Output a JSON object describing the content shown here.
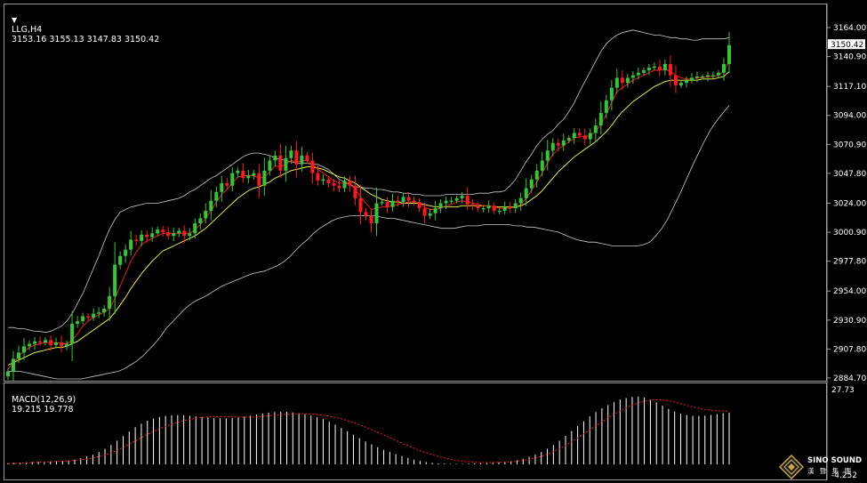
{
  "header": {
    "symbol_label": "LLG,H4",
    "ohlc": "3153.16 3155.13 3147.83 3150.42"
  },
  "macd": {
    "label": "MACD(12,26,9)",
    "values": "19.215 19.778",
    "axis_top": "27.73",
    "axis_bottom": "-4.252"
  },
  "current_price": "3150.42",
  "price_axis_labels": [
    "3164.00",
    "3140.90",
    "3117.10",
    "3094.00",
    "3070.90",
    "3047.80",
    "3024.00",
    "3000.90",
    "2977.80",
    "2954.00",
    "2930.90",
    "2907.80",
    "2884.70"
  ],
  "logo": {
    "name": "SINO SOUND",
    "sub": "漢 聲 集 團",
    "icon": "diamond-logo-icon"
  },
  "colors": {
    "bull": "#32c832",
    "bear": "#ff1a1a",
    "bands": "#c8c8d0",
    "ma_fast": "#ff2020",
    "ma_slow": "#ffff40",
    "macd_hist": "#ffffff",
    "macd_signal": "#ff2020"
  },
  "chart_data": {
    "type": "candlestick",
    "ylim": [
      2884.7,
      3170
    ],
    "y_ticks": [
      3164.0,
      3140.9,
      3117.1,
      3094.0,
      3070.9,
      3047.8,
      3024.0,
      3000.9,
      2977.8,
      2954.0,
      2930.9,
      2907.8,
      2884.7
    ],
    "close": [
      2890,
      2900,
      2905,
      2910,
      2912,
      2914,
      2913,
      2915,
      2911,
      2913,
      2910,
      2912,
      2928,
      2930,
      2934,
      2933,
      2936,
      2937,
      2940,
      2950,
      2975,
      2982,
      2987,
      2995,
      2994,
      2999,
      2997,
      3000,
      3003,
      3001,
      2998,
      3000,
      3002,
      2998,
      3000,
      3008,
      3012,
      3018,
      3026,
      3033,
      3040,
      3038,
      3048,
      3050,
      3044,
      3046,
      3048,
      3038,
      3050,
      3058,
      3062,
      3050,
      3060,
      3066,
      3055,
      3062,
      3058,
      3048,
      3042,
      3043,
      3040,
      3038,
      3036,
      3042,
      3038,
      3028,
      3017,
      3014,
      3008,
      3024,
      3025,
      3021,
      3026,
      3025,
      3029,
      3026,
      3025,
      3020,
      3014,
      3016,
      3020,
      3024,
      3026,
      3026,
      3028,
      3030,
      3023,
      3022,
      3020,
      3020,
      3022,
      3018,
      3018,
      3021,
      3020,
      3024,
      3028,
      3036,
      3043,
      3050,
      3058,
      3066,
      3072,
      3070,
      3074,
      3076,
      3080,
      3078,
      3075,
      3080,
      3086,
      3096,
      3106,
      3116,
      3124,
      3120,
      3124,
      3126,
      3128,
      3130,
      3132,
      3133,
      3130,
      3135,
      3126,
      3118,
      3120,
      3122,
      3124,
      3125,
      3125,
      3126,
      3126,
      3128,
      3135,
      3150
    ],
    "upper_band": [
      2925,
      2925,
      2924,
      2924,
      2923,
      2922,
      2922,
      2921,
      2922,
      2924,
      2926,
      2930,
      2936,
      2944,
      2952,
      2962,
      2972,
      2982,
      2993,
      3003,
      3011,
      3017,
      3019,
      3021,
      3022,
      3023,
      3024,
      3024,
      3024,
      3025,
      3026,
      3027,
      3028,
      3030,
      3033,
      3035,
      3038,
      3041,
      3044,
      3046,
      3049,
      3052,
      3055,
      3058,
      3061,
      3063,
      3064,
      3064,
      3063,
      3062,
      3060,
      3059,
      3058,
      3057,
      3056,
      3056,
      3056,
      3055,
      3055,
      3053,
      3051,
      3047,
      3043,
      3041,
      3039,
      3037,
      3037,
      3036,
      3036,
      3035,
      3035,
      3034,
      3033,
      3033,
      3032,
      3032,
      3031,
      3031,
      3030,
      3030,
      3030,
      3030,
      3031,
      3031,
      3031,
      3031,
      3031,
      3031,
      3032,
      3032,
      3032,
      3033,
      3033,
      3034,
      3038,
      3043,
      3050,
      3057,
      3063,
      3070,
      3075,
      3079,
      3082,
      3087,
      3091,
      3097,
      3104,
      3113,
      3121,
      3129,
      3137,
      3145,
      3151,
      3155,
      3158,
      3160,
      3161,
      3162,
      3161,
      3160,
      3159,
      3158,
      3158,
      3157,
      3156,
      3156,
      3155,
      3155,
      3154,
      3154,
      3155,
      3155,
      3155,
      3155,
      3155,
      3156
    ],
    "lower_band": [
      2890,
      2890,
      2890,
      2889,
      2888,
      2887,
      2886,
      2885,
      2884,
      2884,
      2884,
      2884,
      2884,
      2885,
      2886,
      2887,
      2888,
      2889,
      2890,
      2892,
      2895,
      2898,
      2902,
      2907,
      2912,
      2918,
      2925,
      2930,
      2935,
      2940,
      2944,
      2947,
      2949,
      2952,
      2955,
      2958,
      2960,
      2962,
      2964,
      2966,
      2968,
      2969,
      2970,
      2972,
      2974,
      2977,
      2981,
      2986,
      2991,
      2995,
      3000,
      3004,
      3007,
      3010,
      3012,
      3013,
      3014,
      3014,
      3014,
      3014,
      3014,
      3013,
      3012,
      3012,
      3011,
      3010,
      3009,
      3008,
      3007,
      3006,
      3005,
      3004,
      3004,
      3004,
      3005,
      3006,
      3006,
      3006,
      3007,
      3007,
      3007,
      3007,
      3007,
      3006,
      3006,
      3005,
      3005,
      3004,
      3003,
      3002,
      3001,
      2999,
      2997,
      2995,
      2994,
      2993,
      2993,
      2992,
      2991,
      2990,
      2990,
      2990,
      2990,
      2990,
      2991,
      2993,
      2998,
      3004,
      3012,
      3022,
      3032,
      3043,
      3054,
      3064,
      3074,
      3083,
      3090,
      3096,
      3102
    ],
    "ma_fast": [
      2892,
      2897,
      2902,
      2906,
      2909,
      2911,
      2912,
      2913,
      2913,
      2913,
      2912,
      2912,
      2915,
      2920,
      2926,
      2930,
      2933,
      2935,
      2937,
      2940,
      2948,
      2958,
      2968,
      2978,
      2985,
      2991,
      2994,
      2996,
      2998,
      3000,
      3000,
      3000,
      3000,
      3000,
      3000,
      3003,
      3007,
      3012,
      3018,
      3025,
      3031,
      3035,
      3040,
      3045,
      3046,
      3046,
      3046,
      3044,
      3045,
      3049,
      3054,
      3053,
      3055,
      3058,
      3057,
      3058,
      3058,
      3055,
      3051,
      3048,
      3045,
      3042,
      3040,
      3040,
      3039,
      3035,
      3029,
      3024,
      3019,
      3020,
      3021,
      3021,
      3022,
      3023,
      3024,
      3025,
      3025,
      3024,
      3021,
      3019,
      3019,
      3020,
      3022,
      3023,
      3025,
      3026,
      3025,
      3024,
      3023,
      3022,
      3022,
      3021,
      3020,
      3020,
      3020,
      3021,
      3023,
      3028,
      3034,
      3041,
      3048,
      3056,
      3063,
      3067,
      3070,
      3073,
      3076,
      3077,
      3077,
      3078,
      3081,
      3087,
      3095,
      3104,
      3113,
      3116,
      3119,
      3122,
      3124,
      3126,
      3128,
      3130,
      3130,
      3131,
      3129,
      3126,
      3124,
      3123,
      3123,
      3124,
      3124,
      3125,
      3125,
      3126,
      3129,
      3137
    ],
    "ma_slow": [
      2895,
      2897,
      2899,
      2901,
      2903,
      2905,
      2906,
      2907,
      2908,
      2909,
      2909,
      2910,
      2912,
      2914,
      2917,
      2920,
      2923,
      2926,
      2929,
      2932,
      2937,
      2943,
      2949,
      2956,
      2962,
      2968,
      2973,
      2978,
      2982,
      2986,
      2988,
      2990,
      2992,
      2994,
      2996,
      2998,
      3001,
      3004,
      3008,
      3012,
      3016,
      3020,
      3024,
      3028,
      3031,
      3034,
      3036,
      3037,
      3039,
      3041,
      3044,
      3046,
      3048,
      3050,
      3051,
      3052,
      3053,
      3053,
      3052,
      3051,
      3049,
      3047,
      3045,
      3044,
      3042,
      3040,
      3037,
      3034,
      3031,
      3029,
      3027,
      3026,
      3025,
      3025,
      3024,
      3024,
      3024,
      3024,
      3023,
      3022,
      3021,
      3021,
      3021,
      3021,
      3021,
      3022,
      3022,
      3022,
      3022,
      3022,
      3022,
      3021,
      3021,
      3021,
      3021,
      3021,
      3022,
      3024,
      3027,
      3030,
      3034,
      3039,
      3044,
      3049,
      3053,
      3057,
      3061,
      3064,
      3067,
      3070,
      3073,
      3077,
      3081,
      3086,
      3092,
      3097,
      3101,
      3105,
      3108,
      3111,
      3114,
      3117,
      3119,
      3121,
      3122,
      3122,
      3122,
      3122,
      3122,
      3122,
      3123,
      3123,
      3123,
      3124,
      3125,
      3129
    ],
    "macd_hist": [
      0.5,
      0.6,
      0.7,
      0.8,
      0.9,
      1.0,
      1.0,
      1.1,
      1.2,
      1.3,
      1.5,
      1.8,
      2.3,
      2.9,
      3.6,
      4.6,
      5.8,
      7.2,
      8.8,
      10.5,
      12.2,
      13.8,
      15.1,
      16.2,
      17.0,
      17.6,
      18.0,
      18.2,
      18.3,
      18.2,
      18.0,
      17.8,
      17.6,
      17.4,
      17.2,
      17.1,
      17.1,
      17.2,
      17.4,
      17.7,
      18.1,
      18.5,
      18.9,
      19.2,
      19.4,
      19.5,
      19.5,
      19.3,
      19.0,
      18.6,
      18.1,
      17.5,
      16.8,
      15.8,
      14.7,
      13.5,
      12.3,
      11.0,
      9.7,
      8.5,
      7.4,
      6.4,
      5.4,
      4.6,
      3.8,
      3.1,
      2.4,
      1.8,
      1.3,
      0.9,
      0.6,
      0.4,
      0.3,
      0.2,
      0.2,
      0.2,
      0.3,
      0.4,
      0.5,
      0.6,
      0.7,
      0.8,
      1.0,
      1.2,
      1.5,
      2.1,
      2.8,
      3.6,
      4.6,
      5.8,
      7.2,
      8.8,
      10.6,
      12.4,
      14.2,
      16.0,
      17.8,
      19.4,
      20.8,
      22.0,
      23.1,
      24.0,
      24.6,
      25.0,
      25.2,
      24.8,
      24.0,
      23.0,
      21.8,
      20.6,
      19.6,
      18.8,
      18.3,
      18.0,
      18.0,
      18.1,
      18.3,
      18.6,
      19.0,
      19.2
    ],
    "macd_signal": [
      0.3,
      0.4,
      0.5,
      0.6,
      0.7,
      0.8,
      0.9,
      1.0,
      1.1,
      1.2,
      1.3,
      1.5,
      1.7,
      2.0,
      2.4,
      2.9,
      3.5,
      4.3,
      5.2,
      6.3,
      7.5,
      8.7,
      9.9,
      11.1,
      12.2,
      13.2,
      14.1,
      14.9,
      15.6,
      16.2,
      16.7,
      17.1,
      17.4,
      17.6,
      17.7,
      17.7,
      17.7,
      17.6,
      17.5,
      17.5,
      17.5,
      17.6,
      17.8,
      18.0,
      18.2,
      18.4,
      18.6,
      18.7,
      18.8,
      18.8,
      18.7,
      18.5,
      18.2,
      17.9,
      17.4,
      16.9,
      16.2,
      15.5,
      14.7,
      13.8,
      12.9,
      11.9,
      10.9,
      9.9,
      8.9,
      7.9,
      6.9,
      6.0,
      5.1,
      4.3,
      3.6,
      2.9,
      2.4,
      1.9,
      1.5,
      1.2,
      1.0,
      0.8,
      0.7,
      0.7,
      0.7,
      0.8,
      0.9,
      1.0,
      1.2,
      1.5,
      1.9,
      2.4,
      3.0,
      3.8,
      4.7,
      5.8,
      7.0,
      8.4,
      9.8,
      11.3,
      12.8,
      14.3,
      15.8,
      17.2,
      18.6,
      19.8,
      21.0,
      22.0,
      22.8,
      23.4,
      23.8,
      24.0,
      23.9,
      23.6,
      23.1,
      22.5,
      21.9,
      21.3,
      20.8,
      20.4,
      20.1,
      19.9,
      19.8,
      19.8
    ]
  }
}
